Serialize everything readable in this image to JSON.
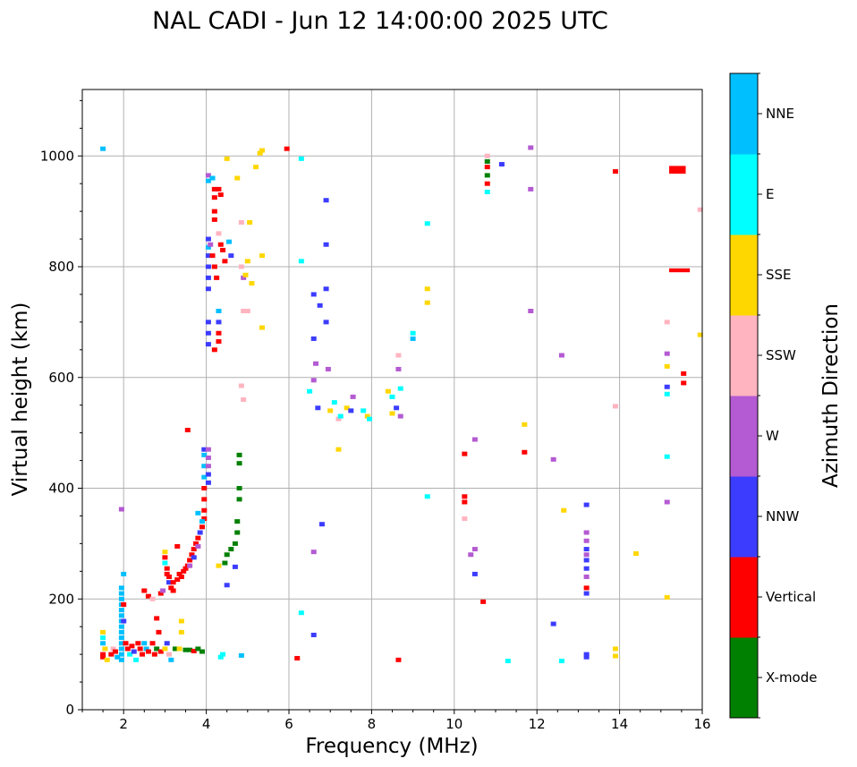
{
  "chart_data": {
    "type": "scatter",
    "title": "NAL CADI - Jun 12 14:00:00 2025 UTC",
    "xlabel": "Frequency (MHz)",
    "ylabel": "Virtual height (km)",
    "xlim": [
      1,
      16
    ],
    "ylim": [
      0,
      1120
    ],
    "xticks": [
      2,
      4,
      6,
      8,
      10,
      12,
      14,
      16
    ],
    "yticks": [
      0,
      200,
      400,
      600,
      800,
      1000
    ],
    "xminor": [
      1,
      1.5,
      2.5,
      3,
      3.5,
      4.5,
      5,
      5.5,
      6.5,
      7,
      7.5,
      8.5,
      9,
      9.5,
      10.5,
      11,
      11.5,
      12.5,
      13,
      13.5,
      14.5,
      15,
      15.5
    ],
    "yminor": [
      50,
      100,
      150,
      250,
      300,
      350,
      450,
      500,
      550,
      650,
      700,
      750,
      850,
      900,
      950,
      1050,
      1100
    ],
    "grid": true,
    "colorbar": {
      "label": "Azimuth Direction",
      "categories": [
        {
          "name": "X-mode",
          "color": "#008000"
        },
        {
          "name": "Vertical",
          "color": "#ff0000"
        },
        {
          "name": "NNW",
          "color": "#3c3cff"
        },
        {
          "name": "W",
          "color": "#b45ad2"
        },
        {
          "name": "SSW",
          "color": "#ffb4c0"
        },
        {
          "name": "SSE",
          "color": "#ffd700"
        },
        {
          "name": "E",
          "color": "#00ffff"
        },
        {
          "name": "NNE",
          "color": "#00bfff"
        }
      ]
    },
    "points": [
      [
        1.5,
        1013,
        "NNE"
      ],
      [
        1.5,
        140,
        "SSE"
      ],
      [
        1.5,
        130,
        "E"
      ],
      [
        1.5,
        120,
        "NNE"
      ],
      [
        1.55,
        110,
        "SSE"
      ],
      [
        1.5,
        100,
        "Vertical"
      ],
      [
        1.5,
        95,
        "Vertical"
      ],
      [
        1.6,
        90,
        "SSE"
      ],
      [
        1.7,
        100,
        "Vertical"
      ],
      [
        1.75,
        110,
        "SSW"
      ],
      [
        1.8,
        105,
        "Vertical"
      ],
      [
        1.85,
        95,
        "NNE"
      ],
      [
        1.95,
        220,
        "NNE"
      ],
      [
        1.95,
        210,
        "NNE"
      ],
      [
        1.95,
        200,
        "NNE"
      ],
      [
        1.95,
        190,
        "NNE"
      ],
      [
        1.95,
        180,
        "NNE"
      ],
      [
        1.95,
        170,
        "NNE"
      ],
      [
        1.95,
        160,
        "NNE"
      ],
      [
        1.95,
        150,
        "NNE"
      ],
      [
        1.95,
        140,
        "NNE"
      ],
      [
        1.95,
        130,
        "NNE"
      ],
      [
        1.95,
        120,
        "NNE"
      ],
      [
        1.95,
        110,
        "NNE"
      ],
      [
        1.95,
        100,
        "NNE"
      ],
      [
        1.95,
        90,
        "NNE"
      ],
      [
        1.95,
        362,
        "W"
      ],
      [
        2.0,
        245,
        "NNE"
      ],
      [
        2.0,
        190,
        "Vertical"
      ],
      [
        2.0,
        160,
        "NNW"
      ],
      [
        2.05,
        120,
        "Vertical"
      ],
      [
        2.1,
        110,
        "Vertical"
      ],
      [
        2.15,
        100,
        "E"
      ],
      [
        2.2,
        115,
        "Vertical"
      ],
      [
        2.25,
        105,
        "NNW"
      ],
      [
        2.3,
        90,
        "E"
      ],
      [
        2.35,
        120,
        "Vertical"
      ],
      [
        2.4,
        110,
        "Vertical"
      ],
      [
        2.45,
        100,
        "Vertical"
      ],
      [
        2.5,
        120,
        "NNE"
      ],
      [
        2.55,
        110,
        "NNE"
      ],
      [
        2.6,
        105,
        "Vertical"
      ],
      [
        2.7,
        120,
        "Vertical"
      ],
      [
        2.75,
        100,
        "Vertical"
      ],
      [
        2.8,
        110,
        "X-mode"
      ],
      [
        2.85,
        140,
        "Vertical"
      ],
      [
        2.9,
        105,
        "Vertical"
      ],
      [
        3.0,
        110,
        "SSE"
      ],
      [
        3.05,
        120,
        "NNW"
      ],
      [
        3.1,
        100,
        "SSW"
      ],
      [
        3.15,
        90,
        "NNE"
      ],
      [
        3.25,
        110,
        "X-mode"
      ],
      [
        3.35,
        110,
        "SSE"
      ],
      [
        3.4,
        160,
        "SSE"
      ],
      [
        3.4,
        140,
        "SSE"
      ],
      [
        3.5,
        108,
        "X-mode"
      ],
      [
        3.6,
        108,
        "X-mode"
      ],
      [
        3.7,
        106,
        "Vertical"
      ],
      [
        3.8,
        110,
        "X-mode"
      ],
      [
        3.9,
        105,
        "X-mode"
      ],
      [
        2.5,
        215,
        "Vertical"
      ],
      [
        2.6,
        205,
        "Vertical"
      ],
      [
        2.7,
        200,
        "SSW"
      ],
      [
        2.8,
        165,
        "Vertical"
      ],
      [
        2.9,
        210,
        "Vertical"
      ],
      [
        2.95,
        215,
        "W"
      ],
      [
        3.0,
        285,
        "SSE"
      ],
      [
        3.0,
        275,
        "Vertical"
      ],
      [
        3.0,
        265,
        "E"
      ],
      [
        3.05,
        255,
        "Vertical"
      ],
      [
        3.05,
        245,
        "Vertical"
      ],
      [
        3.1,
        240,
        "Vertical"
      ],
      [
        3.1,
        230,
        "NNW"
      ],
      [
        3.15,
        220,
        "Vertical"
      ],
      [
        3.2,
        215,
        "Vertical"
      ],
      [
        3.2,
        230,
        "Vertical"
      ],
      [
        3.3,
        235,
        "Vertical"
      ],
      [
        3.35,
        245,
        "Vertical"
      ],
      [
        3.3,
        295,
        "Vertical"
      ],
      [
        3.4,
        240,
        "Vertical"
      ],
      [
        3.45,
        250,
        "Vertical"
      ],
      [
        3.5,
        255,
        "Vertical"
      ],
      [
        3.55,
        260,
        "Vertical"
      ],
      [
        3.6,
        270,
        "Vertical"
      ],
      [
        3.65,
        280,
        "Vertical"
      ],
      [
        3.7,
        290,
        "Vertical"
      ],
      [
        3.75,
        300,
        "Vertical"
      ],
      [
        3.8,
        310,
        "Vertical"
      ],
      [
        3.85,
        320,
        "NNW"
      ],
      [
        3.9,
        330,
        "Vertical"
      ],
      [
        3.95,
        345,
        "Vertical"
      ],
      [
        3.6,
        260,
        "W"
      ],
      [
        3.7,
        275,
        "NNW"
      ],
      [
        3.8,
        295,
        "W"
      ],
      [
        3.8,
        355,
        "NNE"
      ],
      [
        3.9,
        340,
        "NNE"
      ],
      [
        3.55,
        505,
        "Vertical"
      ],
      [
        3.95,
        360,
        "Vertical"
      ],
      [
        3.95,
        380,
        "Vertical"
      ],
      [
        3.95,
        400,
        "Vertical"
      ],
      [
        3.95,
        420,
        "NNE"
      ],
      [
        3.95,
        440,
        "NNE"
      ],
      [
        3.95,
        460,
        "NNE"
      ],
      [
        3.95,
        470,
        "NNW"
      ],
      [
        4.05,
        470,
        "W"
      ],
      [
        4.05,
        455,
        "W"
      ],
      [
        4.05,
        440,
        "W"
      ],
      [
        4.05,
        425,
        "NNW"
      ],
      [
        4.05,
        410,
        "NNW"
      ],
      [
        4.05,
        965,
        "W"
      ],
      [
        4.05,
        955,
        "NNE"
      ],
      [
        4.15,
        960,
        "NNE"
      ],
      [
        4.2,
        940,
        "Vertical"
      ],
      [
        4.2,
        925,
        "Vertical"
      ],
      [
        4.2,
        900,
        "Vertical"
      ],
      [
        4.2,
        885,
        "Vertical"
      ],
      [
        4.05,
        850,
        "NNW"
      ],
      [
        4.05,
        835,
        "NNE"
      ],
      [
        4.05,
        820,
        "NNW"
      ],
      [
        4.05,
        800,
        "NNW"
      ],
      [
        4.05,
        780,
        "NNW"
      ],
      [
        4.05,
        760,
        "NNW"
      ],
      [
        4.1,
        840,
        "W"
      ],
      [
        4.15,
        820,
        "Vertical"
      ],
      [
        4.2,
        800,
        "Vertical"
      ],
      [
        4.25,
        780,
        "Vertical"
      ],
      [
        4.3,
        940,
        "Vertical"
      ],
      [
        4.35,
        930,
        "Vertical"
      ],
      [
        4.3,
        860,
        "SSW"
      ],
      [
        4.35,
        840,
        "Vertical"
      ],
      [
        4.4,
        830,
        "Vertical"
      ],
      [
        4.45,
        810,
        "Vertical"
      ],
      [
        4.55,
        845,
        "NNE"
      ],
      [
        4.6,
        820,
        "NNW"
      ],
      [
        4.3,
        720,
        "NNE"
      ],
      [
        4.3,
        700,
        "NNW"
      ],
      [
        4.05,
        700,
        "NNW"
      ],
      [
        4.05,
        680,
        "NNW"
      ],
      [
        4.05,
        660,
        "NNW"
      ],
      [
        4.2,
        650,
        "Vertical"
      ],
      [
        4.3,
        680,
        "Vertical"
      ],
      [
        4.3,
        665,
        "Vertical"
      ],
      [
        4.5,
        995,
        "SSE"
      ],
      [
        4.75,
        960,
        "SSE"
      ],
      [
        4.85,
        880,
        "SSW"
      ],
      [
        4.85,
        800,
        "SSW"
      ],
      [
        4.9,
        780,
        "W"
      ],
      [
        4.95,
        785,
        "SSE"
      ],
      [
        5.0,
        810,
        "SSE"
      ],
      [
        5.1,
        770,
        "SSE"
      ],
      [
        5.2,
        980,
        "SSE"
      ],
      [
        5.35,
        820,
        "SSE"
      ],
      [
        5.35,
        690,
        "SSE"
      ],
      [
        4.9,
        720,
        "SSW"
      ],
      [
        5.0,
        720,
        "SSW"
      ],
      [
        4.85,
        585,
        "SSW"
      ],
      [
        4.9,
        560,
        "SSW"
      ],
      [
        5.05,
        880,
        "SSE"
      ],
      [
        5.3,
        1005,
        "SSE"
      ],
      [
        5.35,
        1010,
        "SSE"
      ],
      [
        5.95,
        1013,
        "Vertical"
      ],
      [
        4.8,
        460,
        "X-mode"
      ],
      [
        4.8,
        445,
        "X-mode"
      ],
      [
        4.8,
        400,
        "X-mode"
      ],
      [
        4.8,
        380,
        "X-mode"
      ],
      [
        4.75,
        340,
        "X-mode"
      ],
      [
        4.75,
        320,
        "X-mode"
      ],
      [
        4.7,
        300,
        "X-mode"
      ],
      [
        4.6,
        290,
        "X-mode"
      ],
      [
        4.5,
        280,
        "X-mode"
      ],
      [
        4.45,
        265,
        "X-mode"
      ],
      [
        4.3,
        260,
        "SSE"
      ],
      [
        4.7,
        258,
        "NNW"
      ],
      [
        4.5,
        225,
        "NNW"
      ],
      [
        4.35,
        95,
        "E"
      ],
      [
        4.4,
        100,
        "E"
      ],
      [
        4.85,
        98,
        "NNE"
      ],
      [
        6.3,
        995,
        "E"
      ],
      [
        6.3,
        810,
        "E"
      ],
      [
        6.5,
        575,
        "E"
      ],
      [
        6.6,
        750,
        "NNW"
      ],
      [
        6.6,
        670,
        "NNW"
      ],
      [
        6.65,
        625,
        "W"
      ],
      [
        6.6,
        595,
        "W"
      ],
      [
        6.7,
        545,
        "NNW"
      ],
      [
        6.75,
        730,
        "NNW"
      ],
      [
        6.9,
        700,
        "NNW"
      ],
      [
        6.9,
        760,
        "NNW"
      ],
      [
        6.9,
        840,
        "NNW"
      ],
      [
        6.9,
        920,
        "NNW"
      ],
      [
        6.95,
        615,
        "W"
      ],
      [
        6.8,
        335,
        "NNW"
      ],
      [
        6.6,
        285,
        "W"
      ],
      [
        6.6,
        135,
        "NNW"
      ],
      [
        6.3,
        175,
        "E"
      ],
      [
        6.2,
        93,
        "Vertical"
      ],
      [
        7.0,
        540,
        "SSE"
      ],
      [
        7.1,
        555,
        "E"
      ],
      [
        7.2,
        525,
        "SSW"
      ],
      [
        7.25,
        530,
        "E"
      ],
      [
        7.4,
        545,
        "SSE"
      ],
      [
        7.5,
        540,
        "NNW"
      ],
      [
        7.55,
        565,
        "W"
      ],
      [
        7.8,
        540,
        "E"
      ],
      [
        7.9,
        530,
        "SSE"
      ],
      [
        7.95,
        525,
        "E"
      ],
      [
        8.4,
        575,
        "SSE"
      ],
      [
        8.5,
        565,
        "E"
      ],
      [
        8.7,
        580,
        "E"
      ],
      [
        8.6,
        545,
        "NNW"
      ],
      [
        8.7,
        530,
        "W"
      ],
      [
        8.65,
        640,
        "SSW"
      ],
      [
        8.65,
        615,
        "W"
      ],
      [
        8.5,
        535,
        "SSE"
      ],
      [
        8.65,
        90,
        "Vertical"
      ],
      [
        9.0,
        680,
        "E"
      ],
      [
        9.0,
        670,
        "NNE"
      ],
      [
        9.35,
        878,
        "E"
      ],
      [
        9.35,
        760,
        "SSE"
      ],
      [
        9.35,
        735,
        "SSE"
      ],
      [
        9.35,
        385,
        "E"
      ],
      [
        7.2,
        470,
        "SSE"
      ],
      [
        10.8,
        990,
        "X-mode"
      ],
      [
        10.8,
        980,
        "Vertical"
      ],
      [
        10.8,
        965,
        "X-mode"
      ],
      [
        10.8,
        950,
        "Vertical"
      ],
      [
        10.8,
        935,
        "E"
      ],
      [
        10.8,
        1000,
        "SSW"
      ],
      [
        11.15,
        985,
        "NNW"
      ],
      [
        11.85,
        1015,
        "W"
      ],
      [
        11.85,
        940,
        "W"
      ],
      [
        11.85,
        720,
        "W"
      ],
      [
        10.5,
        488,
        "W"
      ],
      [
        10.25,
        462,
        "Vertical"
      ],
      [
        10.25,
        385,
        "Vertical"
      ],
      [
        10.25,
        375,
        "Vertical"
      ],
      [
        10.25,
        345,
        "SSW"
      ],
      [
        10.4,
        280,
        "W"
      ],
      [
        10.5,
        290,
        "W"
      ],
      [
        10.5,
        245,
        "NNW"
      ],
      [
        10.7,
        195,
        "Vertical"
      ],
      [
        11.3,
        88,
        "E"
      ],
      [
        11.7,
        515,
        "SSE"
      ],
      [
        11.7,
        465,
        "Vertical"
      ],
      [
        12.4,
        452,
        "W"
      ],
      [
        12.4,
        155,
        "NNW"
      ],
      [
        12.6,
        640,
        "W"
      ],
      [
        12.65,
        360,
        "SSE"
      ],
      [
        12.6,
        88,
        "E"
      ],
      [
        13.2,
        370,
        "NNW"
      ],
      [
        13.2,
        320,
        "W"
      ],
      [
        13.2,
        305,
        "W"
      ],
      [
        13.2,
        290,
        "NNW"
      ],
      [
        13.2,
        280,
        "W"
      ],
      [
        13.2,
        270,
        "NNW"
      ],
      [
        13.2,
        255,
        "NNW"
      ],
      [
        13.2,
        240,
        "W"
      ],
      [
        13.2,
        220,
        "Vertical"
      ],
      [
        13.2,
        210,
        "NNW"
      ],
      [
        13.2,
        100,
        "NNW"
      ],
      [
        13.2,
        95,
        "NNW"
      ],
      [
        13.9,
        972,
        "Vertical"
      ],
      [
        13.9,
        548,
        "SSW"
      ],
      [
        14.4,
        282,
        "SSE"
      ],
      [
        13.9,
        110,
        "SSE"
      ],
      [
        13.9,
        97,
        "SSE"
      ],
      [
        15.15,
        700,
        "SSW"
      ],
      [
        15.15,
        643,
        "W"
      ],
      [
        15.15,
        620,
        "SSE"
      ],
      [
        15.15,
        583,
        "NNW"
      ],
      [
        15.15,
        570,
        "E"
      ],
      [
        15.15,
        457,
        "E"
      ],
      [
        15.15,
        375,
        "W"
      ],
      [
        15.15,
        203,
        "SSE"
      ],
      [
        15.55,
        607,
        "Vertical"
      ],
      [
        15.55,
        590,
        "Vertical"
      ],
      [
        15.95,
        903,
        "SSW"
      ],
      [
        15.95,
        677,
        "SSE"
      ]
    ],
    "blocks": [
      [
        15.2,
        15.6,
        968,
        982,
        "Vertical"
      ],
      [
        15.2,
        15.7,
        790,
        797,
        "Vertical"
      ]
    ]
  }
}
